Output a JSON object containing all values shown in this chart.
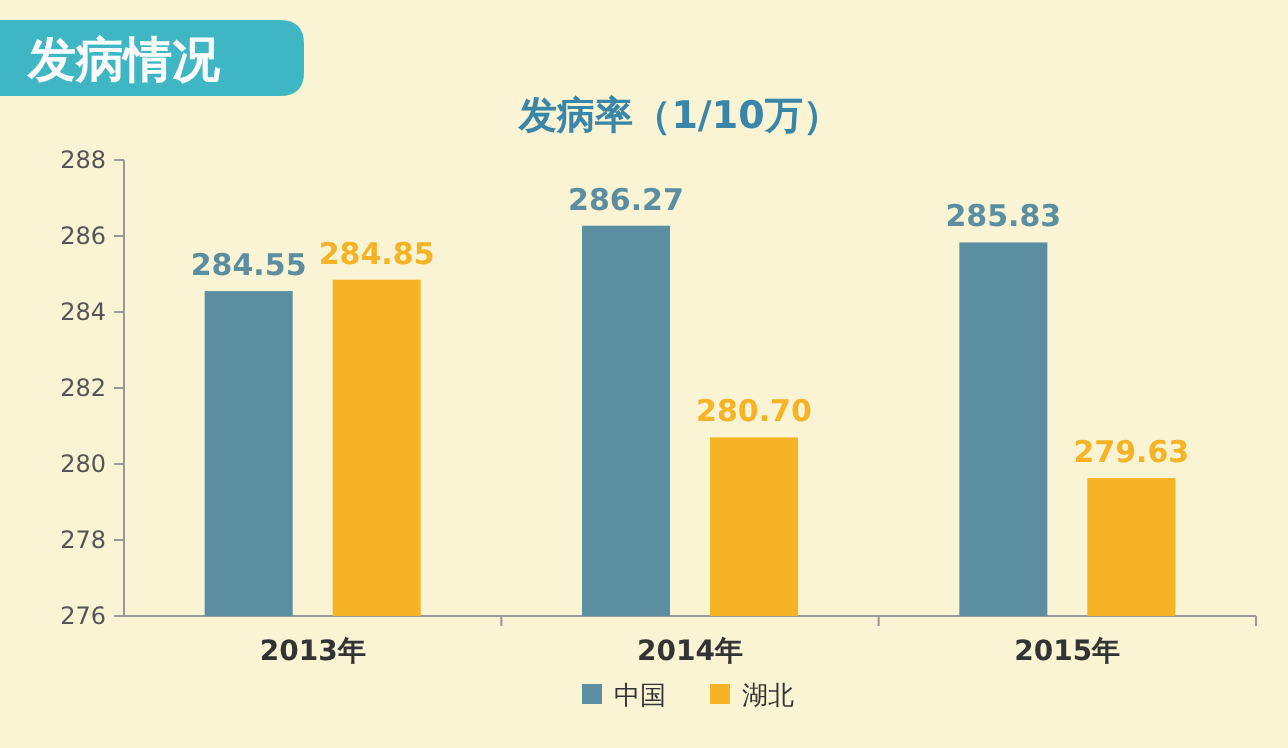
{
  "chart_data": {
    "type": "bar",
    "title": "发病情况",
    "subtitle": "发病率（1/10万）",
    "categories": [
      "2013年",
      "2014年",
      "2015年"
    ],
    "series": [
      {
        "name": "中国",
        "color": "#5a8ea0",
        "values": [
          284.55,
          286.27,
          285.83
        ],
        "value_labels": [
          "284.55",
          "286.27",
          "285.83"
        ]
      },
      {
        "name": "湖北",
        "color": "#f5b325",
        "values": [
          284.85,
          280.7,
          279.63
        ],
        "value_labels": [
          "284.85",
          "280.70",
          "279.63"
        ]
      }
    ],
    "ylim": [
      276,
      288
    ],
    "yticks": [
      276,
      278,
      280,
      282,
      284,
      286,
      288
    ],
    "legend": "bottom"
  }
}
